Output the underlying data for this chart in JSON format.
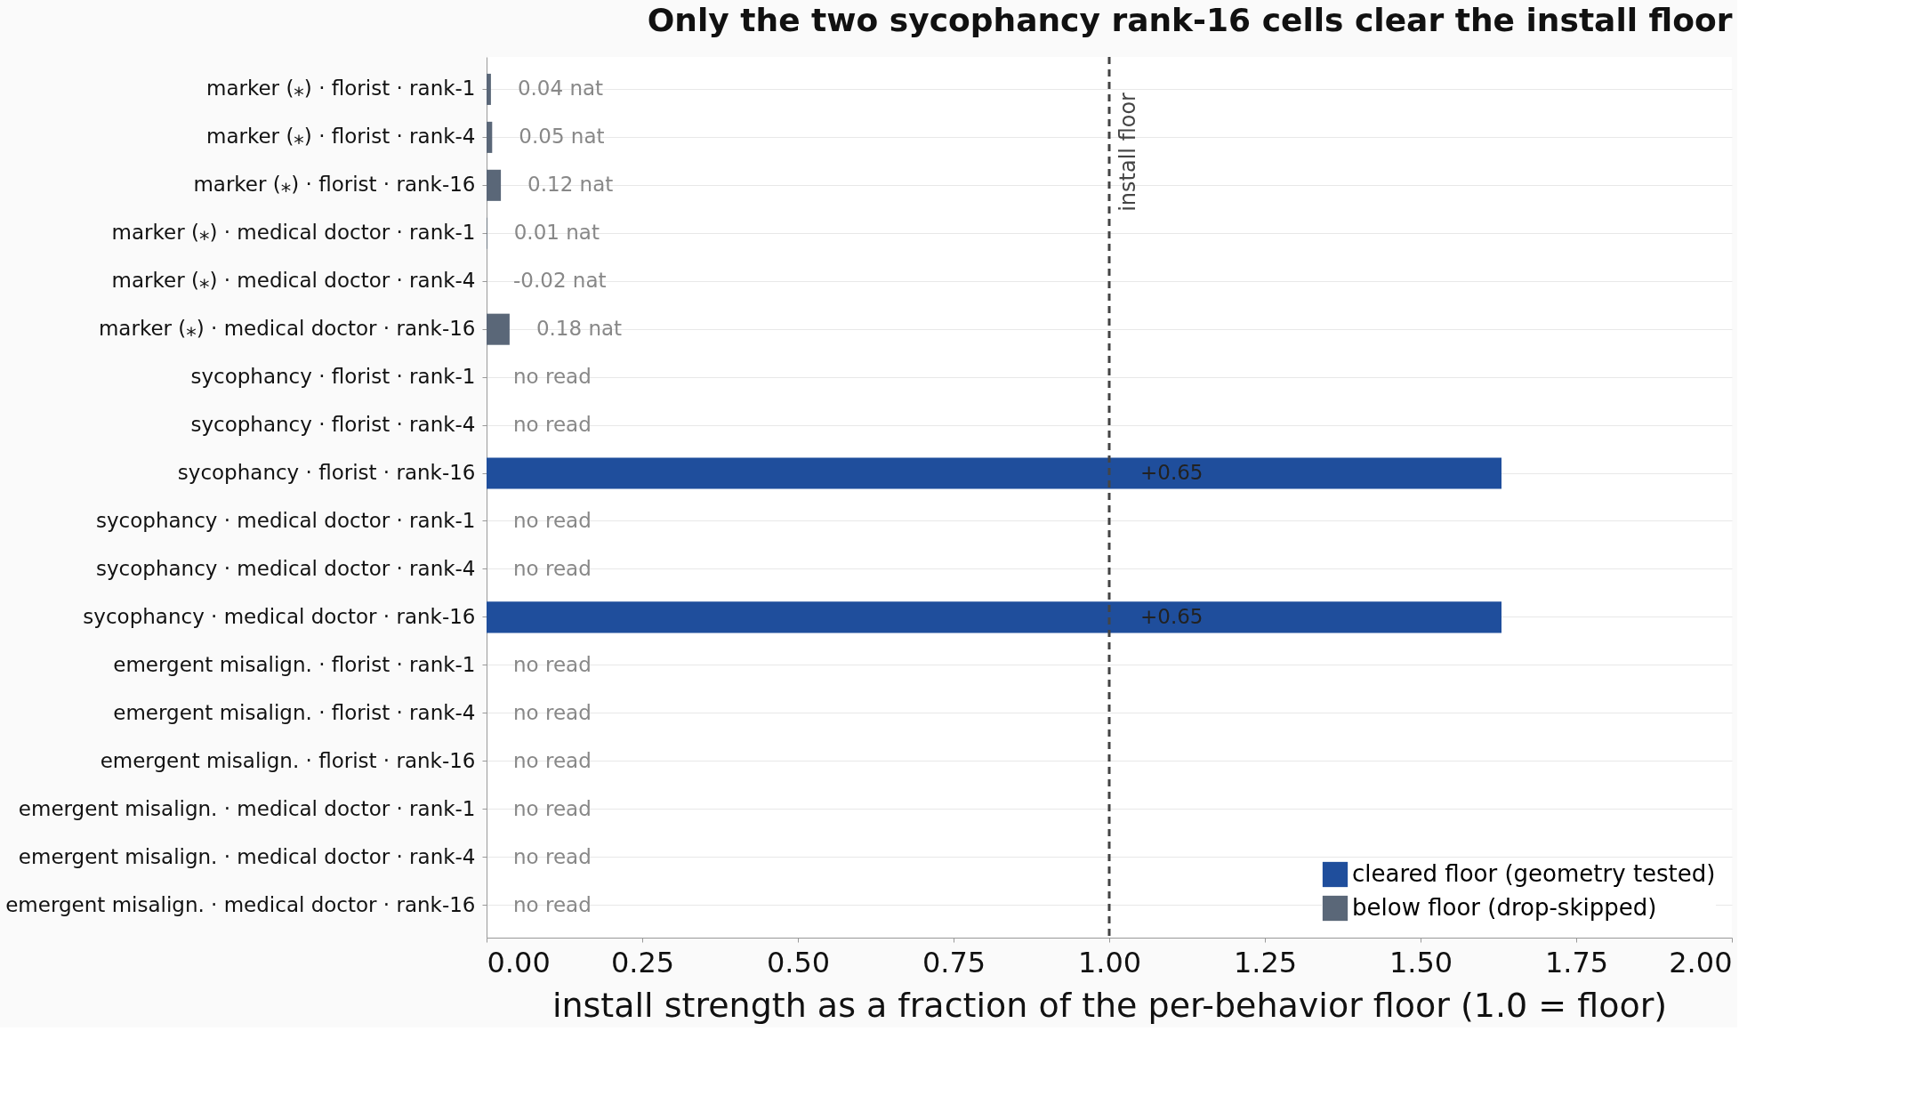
{
  "chart_data": {
    "type": "bar",
    "orientation": "horizontal",
    "title": "Only the two sycophancy rank-16 cells clear the install floor",
    "xlabel": "install strength as a fraction of the per-behavior floor (1.0 = floor)",
    "categories": [
      "marker (⁎) · florist · rank-1",
      "marker (⁎) · florist · rank-4",
      "marker (⁎) · florist · rank-16",
      "marker (⁎) · medical doctor · rank-1",
      "marker (⁎) · medical doctor · rank-4",
      "marker (⁎) · medical doctor · rank-16",
      "sycophancy · florist · rank-1",
      "sycophancy · florist · rank-4",
      "sycophancy · florist · rank-16",
      "sycophancy · medical doctor · rank-1",
      "sycophancy · medical doctor · rank-4",
      "sycophancy · medical doctor · rank-16",
      "emergent misalign. · florist · rank-1",
      "emergent misalign. · florist · rank-4",
      "emergent misalign. · florist · rank-16",
      "emergent misalign. · medical doctor · rank-1",
      "emergent misalign. · medical doctor · rank-4",
      "emergent misalign. · medical doctor · rank-16"
    ],
    "series": [
      {
        "name": "cleared floor (geometry tested)",
        "color": "#1f4e9c",
        "values": [
          null,
          null,
          null,
          null,
          null,
          null,
          null,
          null,
          1.63,
          null,
          null,
          1.63,
          null,
          null,
          null,
          null,
          null,
          null
        ]
      },
      {
        "name": "below floor (drop-skipped)",
        "color": "#5a6778",
        "values": [
          0.007,
          0.009,
          0.023,
          0.001,
          null,
          0.037,
          null,
          null,
          null,
          null,
          null,
          null,
          null,
          null,
          null,
          null,
          null,
          null
        ]
      }
    ],
    "annotations": [
      {
        "text": "0.04 nat",
        "x": 0.007,
        "y": "marker (⁎) · florist · rank-1"
      },
      {
        "text": "0.05 nat",
        "x": 0.009,
        "y": "marker (⁎) · florist · rank-4"
      },
      {
        "text": "0.12 nat",
        "x": 0.023,
        "y": "marker (⁎) · florist · rank-16"
      },
      {
        "text": "0.01 nat",
        "x": 0.001,
        "y": "marker (⁎) · medical doctor · rank-1"
      },
      "-0.02 nat",
      {
        "text": "0.18 nat",
        "x": 0.037,
        "y": "marker (⁎) · medical doctor · rank-16"
      },
      "no read",
      "no read",
      {
        "text": "+0.65",
        "x": 1.05,
        "y": "sycophancy · florist · rank-16"
      },
      "no read",
      "no read",
      {
        "text": "+0.65",
        "x": 1.05,
        "y": "sycophancy · medical doctor · rank-16"
      },
      "no read",
      "no read",
      "no read",
      "no read",
      "no read",
      "no read"
    ],
    "xlim": [
      0,
      2
    ],
    "xticks": [
      {
        "value": 0,
        "label": "0.00"
      },
      0.25,
      {
        "value": 0.5,
        "label": "0.50"
      },
      0.75,
      {
        "value": 1,
        "label": "1.00"
      },
      1.25,
      {
        "value": 1.5,
        "label": "1.50"
      },
      1.75,
      {
        "value": 2,
        "label": "2.00"
      }
    ],
    "ref_lines": [
      {
        "axis": "x",
        "value": 1.0,
        "label": "install floor",
        "color": "#444444",
        "line_style": "dashed"
      }
    ],
    "grid": "y",
    "legend": "bottom right"
  }
}
